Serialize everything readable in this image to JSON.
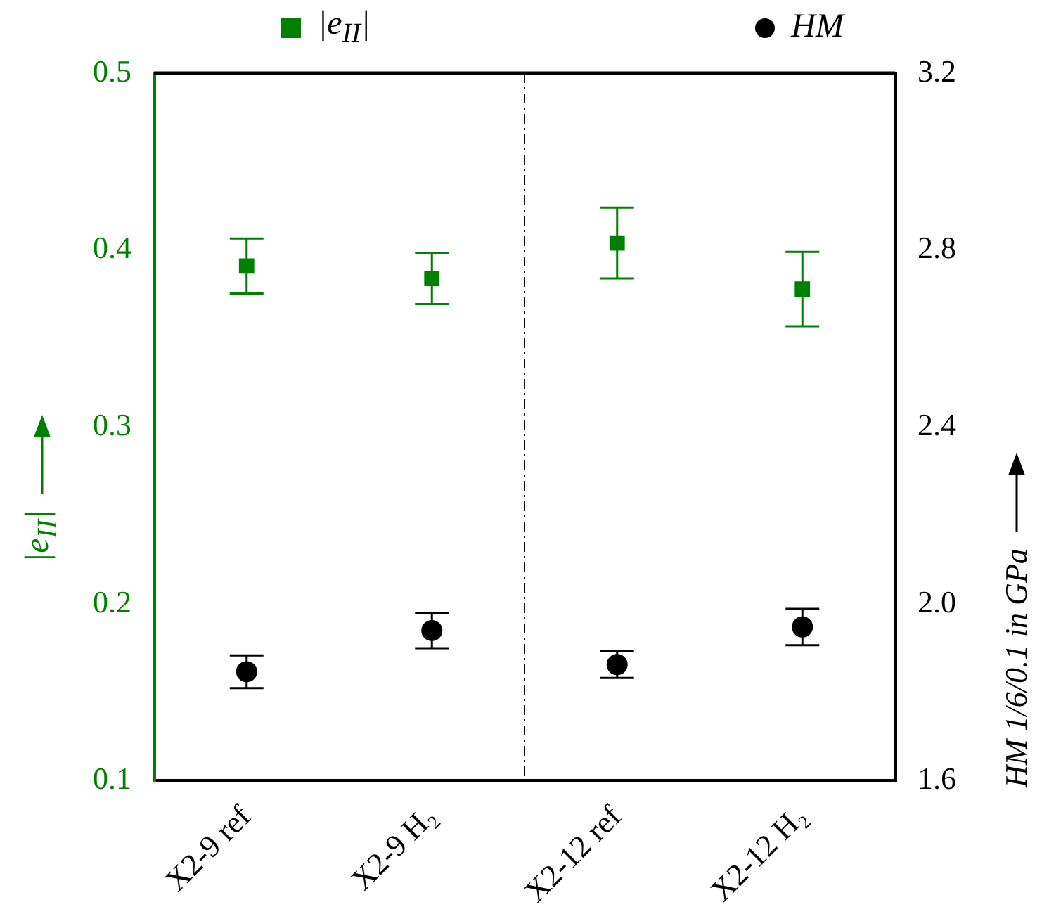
{
  "chart_data": {
    "type": "scatter",
    "xlabel": null,
    "ylabel": "|e$_{II}$|",
    "y2label": "HM 1/6/0.1 in GPa",
    "categories": [
      "X2-9 ref",
      "X2-9 H₂",
      "X2-12 ref",
      "X2-12 H₂"
    ],
    "series": [
      {
        "name": "|e$_{II}$|",
        "color": "#008000",
        "marker": "square",
        "values": [
          0.391,
          0.384,
          0.404,
          0.378
        ],
        "errors": [
          0.0155,
          0.0145,
          0.02,
          0.021
        ]
      },
      {
        "name": "HM",
        "color": "#000000",
        "marker": "circle",
        "axis": "y2",
        "values": [
          1.847,
          1.94,
          1.863,
          1.948
        ],
        "errors": [
          0.037,
          0.04,
          0.03,
          0.041
        ]
      }
    ],
    "ylim": [
      0.1,
      0.5
    ],
    "yticks": [
      0.1,
      0.2,
      0.3,
      0.4,
      0.5
    ],
    "y2lim": [
      1.6,
      3.2
    ],
    "y2ticks": [
      1.6,
      {
        "value": 2,
        "label": "2.0"
      },
      2.4,
      2.8,
      3.2
    ],
    "grid": false,
    "legend": "top"
  }
}
